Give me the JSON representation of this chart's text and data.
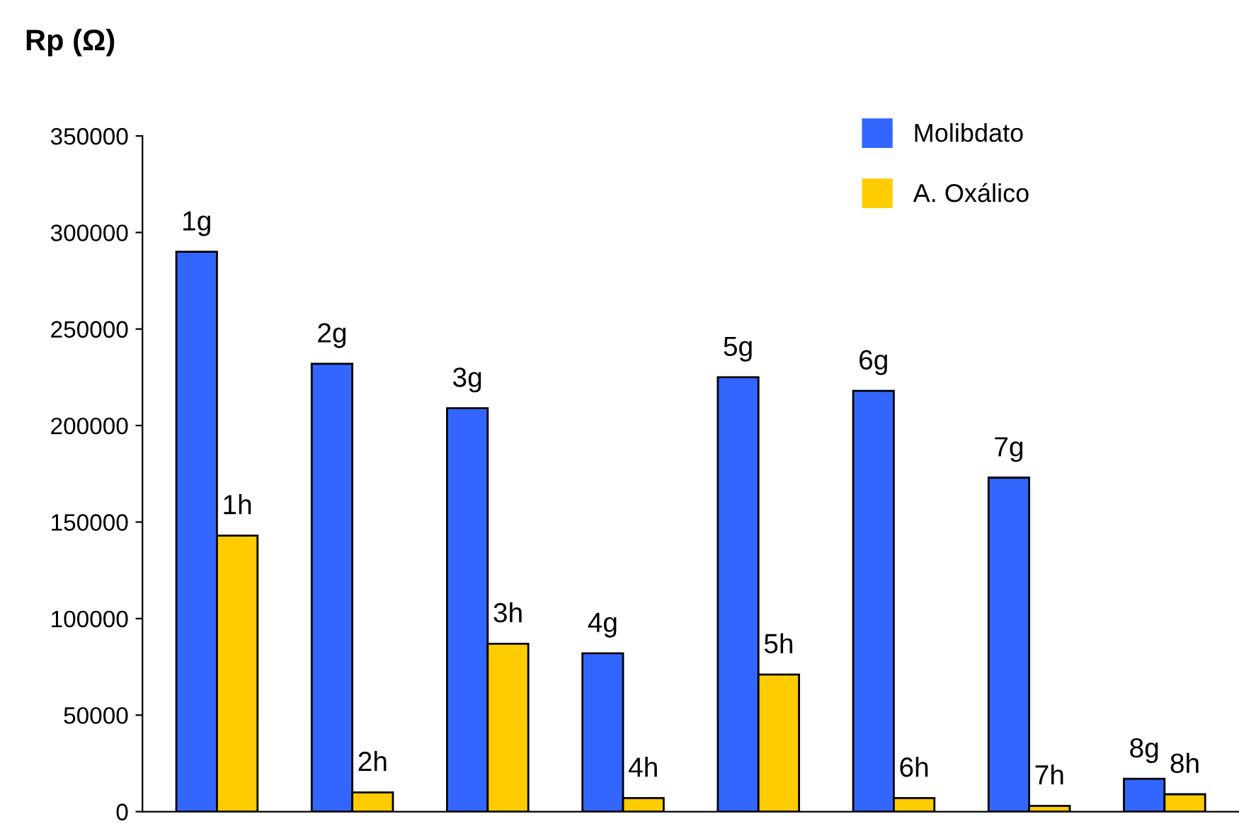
{
  "chart_data": {
    "type": "bar",
    "ylabel": "Rp (Ω)",
    "categories": [
      null,
      null,
      null,
      null,
      null,
      null,
      null,
      null
    ],
    "series": [
      {
        "name": "Molibdato",
        "color": "#3366ff",
        "values": [
          290000,
          232000,
          209000,
          82000,
          225000,
          218000,
          173000,
          17000
        ]
      },
      {
        "name": "A. Oxálico",
        "color": "#ffcc00",
        "values": [
          143000,
          10000,
          87000,
          7000,
          71000,
          7000,
          3000,
          9000
        ]
      }
    ],
    "annotations": [
      {
        "text": "1g",
        "y": 290000
      },
      {
        "text": "1h",
        "y": 143000
      },
      {
        "text": "2g",
        "y": 232000
      },
      {
        "text": "2h",
        "y": 10000
      },
      {
        "text": "3g",
        "y": 209000
      },
      {
        "text": "3h",
        "y": 87000
      },
      {
        "text": "4g",
        "y": 82000
      },
      {
        "text": "4h",
        "y": 7000
      },
      {
        "text": "5g",
        "y": 225000
      },
      {
        "text": "5h",
        "y": 71000
      },
      {
        "text": "6g",
        "y": 218000
      },
      {
        "text": "6h",
        "y": 7000
      },
      {
        "text": "7g",
        "y": 173000
      },
      {
        "text": "7h",
        "y": 3000
      },
      {
        "text": "8g",
        "y": 17000
      },
      {
        "text": "8h",
        "y": 9000
      }
    ],
    "ylim": [
      0,
      350000
    ],
    "yticks": [
      0,
      50000,
      100000,
      150000,
      200000,
      250000,
      300000,
      350000
    ],
    "grid": false,
    "legend": "top right"
  }
}
